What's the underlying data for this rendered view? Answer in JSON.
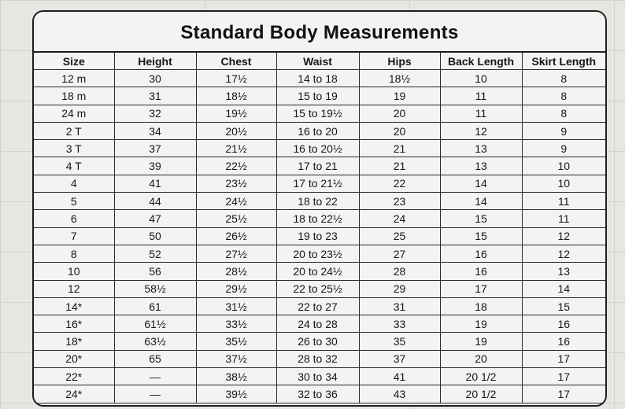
{
  "header": {
    "title": "Standard Body Measurements"
  },
  "table": {
    "columns": [
      "Size",
      "Height",
      "Chest",
      "Waist",
      "Hips",
      "Back Length",
      "Skirt Length"
    ],
    "rows": [
      [
        "12 m",
        "30",
        "17½",
        "14 to 18",
        "18½",
        "10",
        "8"
      ],
      [
        "18 m",
        "31",
        "18½",
        "15 to 19",
        "19",
        "11",
        "8"
      ],
      [
        "24 m",
        "32",
        "19½",
        "15 to 19½",
        "20",
        "11",
        "8"
      ],
      [
        "2 T",
        "34",
        "20½",
        "16 to 20",
        "20",
        "12",
        "9"
      ],
      [
        "3 T",
        "37",
        "21½",
        "16 to 20½",
        "21",
        "13",
        "9"
      ],
      [
        "4 T",
        "39",
        "22½",
        "17 to 21",
        "21",
        "13",
        "10"
      ],
      [
        "4",
        "41",
        "23½",
        "17 to 21½",
        "22",
        "14",
        "10"
      ],
      [
        "5",
        "44",
        "24½",
        "18 to 22",
        "23",
        "14",
        "11"
      ],
      [
        "6",
        "47",
        "25½",
        "18 to 22½",
        "24",
        "15",
        "11"
      ],
      [
        "7",
        "50",
        "26½",
        "19 to 23",
        "25",
        "15",
        "12"
      ],
      [
        "8",
        "52",
        "27½",
        "20 to 23½",
        "27",
        "16",
        "12"
      ],
      [
        "10",
        "56",
        "28½",
        "20 to 24½",
        "28",
        "16",
        "13"
      ],
      [
        "12",
        "58½",
        "29½",
        "22 to 25½",
        "29",
        "17",
        "14"
      ],
      [
        "14*",
        "61",
        "31½",
        "22 to 27",
        "31",
        "18",
        "15"
      ],
      [
        "16*",
        "61½",
        "33½",
        "24 to 28",
        "33",
        "19",
        "16"
      ],
      [
        "18*",
        "63½",
        "35½",
        "26 to 30",
        "35",
        "19",
        "16"
      ],
      [
        "20*",
        "65",
        "37½",
        "28 to 32",
        "37",
        "20",
        "17"
      ],
      [
        "22*",
        "—",
        "38½",
        "30 to 34",
        "41",
        "20 1/2",
        "17"
      ],
      [
        "24*",
        "—",
        "39½",
        "32 to 36",
        "43",
        "20 1/2",
        "17"
      ]
    ]
  }
}
